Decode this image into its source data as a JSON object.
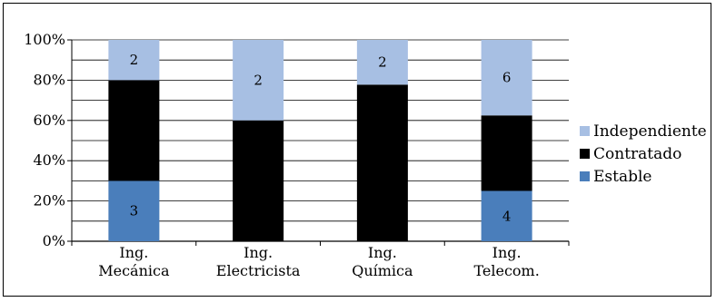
{
  "chart_data": {
    "type": "bar",
    "stacked": true,
    "normalized": true,
    "categories": [
      [
        "Ing.",
        "Mecánica"
      ],
      [
        "Ing.",
        "Electricista"
      ],
      [
        "Ing.",
        "Química"
      ],
      [
        "Ing.",
        "Telecom."
      ]
    ],
    "series": [
      {
        "name": "Estable",
        "values": [
          3,
          0,
          0,
          4
        ],
        "color": "#4a7ebb"
      },
      {
        "name": "Contratado",
        "values": [
          5,
          3,
          7,
          6
        ],
        "color": "#000000"
      },
      {
        "name": "Independiente",
        "values": [
          2,
          2,
          2,
          6
        ],
        "color": "#a7bfe3"
      }
    ],
    "yticks": [
      "0%",
      "20%",
      "40%",
      "60%",
      "80%",
      "100%"
    ],
    "ylim": [
      0,
      100
    ],
    "grid": true,
    "legend": "right",
    "legend_order": [
      "Independiente",
      "Contratado",
      "Estable"
    ],
    "title": "",
    "xlabel": "",
    "ylabel": ""
  }
}
